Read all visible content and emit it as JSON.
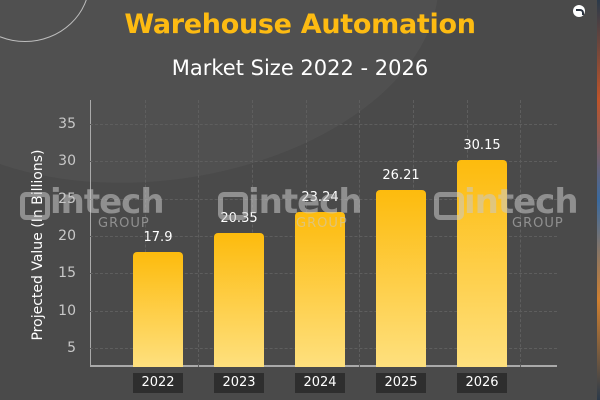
{
  "header": {
    "title": "Warehouse Automation",
    "subtitle": "Market Size 2022 - 2026"
  },
  "watermark": {
    "brand": "intech",
    "sub": "GROUP"
  },
  "colors": {
    "background": "#4a4a4a",
    "title": "#fdbb12",
    "bar_top": "#fdbb0d",
    "bar_bottom": "#fee07e",
    "xtick_bg": "#2e2e2e"
  },
  "chart_data": {
    "type": "bar",
    "title": "Warehouse Automation",
    "subtitle": "Market Size 2022 - 2026",
    "xlabel": "",
    "ylabel": "Projected Value (In Billions)",
    "categories": [
      "2022",
      "2023",
      "2024",
      "2025",
      "2026"
    ],
    "values": [
      17.9,
      20.35,
      23.24,
      26.21,
      30.15
    ],
    "value_labels": [
      "17.9",
      "20.35",
      "23.24",
      "26.21",
      "30.15"
    ],
    "yticks": [
      "5",
      "10",
      "15",
      "20",
      "25",
      "30",
      "35"
    ],
    "ylim": [
      2.5,
      37.5
    ],
    "grid": true,
    "legend": null
  }
}
